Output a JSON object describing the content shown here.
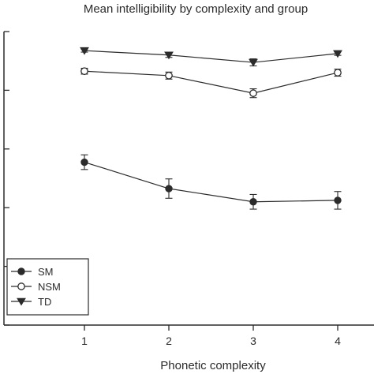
{
  "chart_data": {
    "type": "line",
    "title": "Mean intelligibility by complexity and group",
    "xlabel": "Phonetic complexity",
    "ylabel": "",
    "x": [
      1,
      2,
      3,
      4
    ],
    "xlim": [
      0.5,
      4.5
    ],
    "ylim": [
      0,
      100
    ],
    "grid": false,
    "legend_position": "bottom-left",
    "series": [
      {
        "name": "SM",
        "marker": "filled-circle",
        "values": [
          55.5,
          46.5,
          42,
          42.5
        ],
        "error": [
          2.5,
          3.3,
          2.5,
          3.0
        ]
      },
      {
        "name": "NSM",
        "marker": "open-circle",
        "values": [
          86.5,
          85,
          79,
          86
        ],
        "error": [
          1.0,
          1.2,
          1.5,
          1.2
        ]
      },
      {
        "name": "TD",
        "marker": "filled-triangle-down",
        "values": [
          93.5,
          92,
          89.5,
          92.5
        ],
        "error": [
          0.5,
          0.8,
          1.2,
          0.6
        ]
      }
    ]
  },
  "colors": {
    "ink": "#2b2b2b",
    "background": "#ffffff"
  }
}
